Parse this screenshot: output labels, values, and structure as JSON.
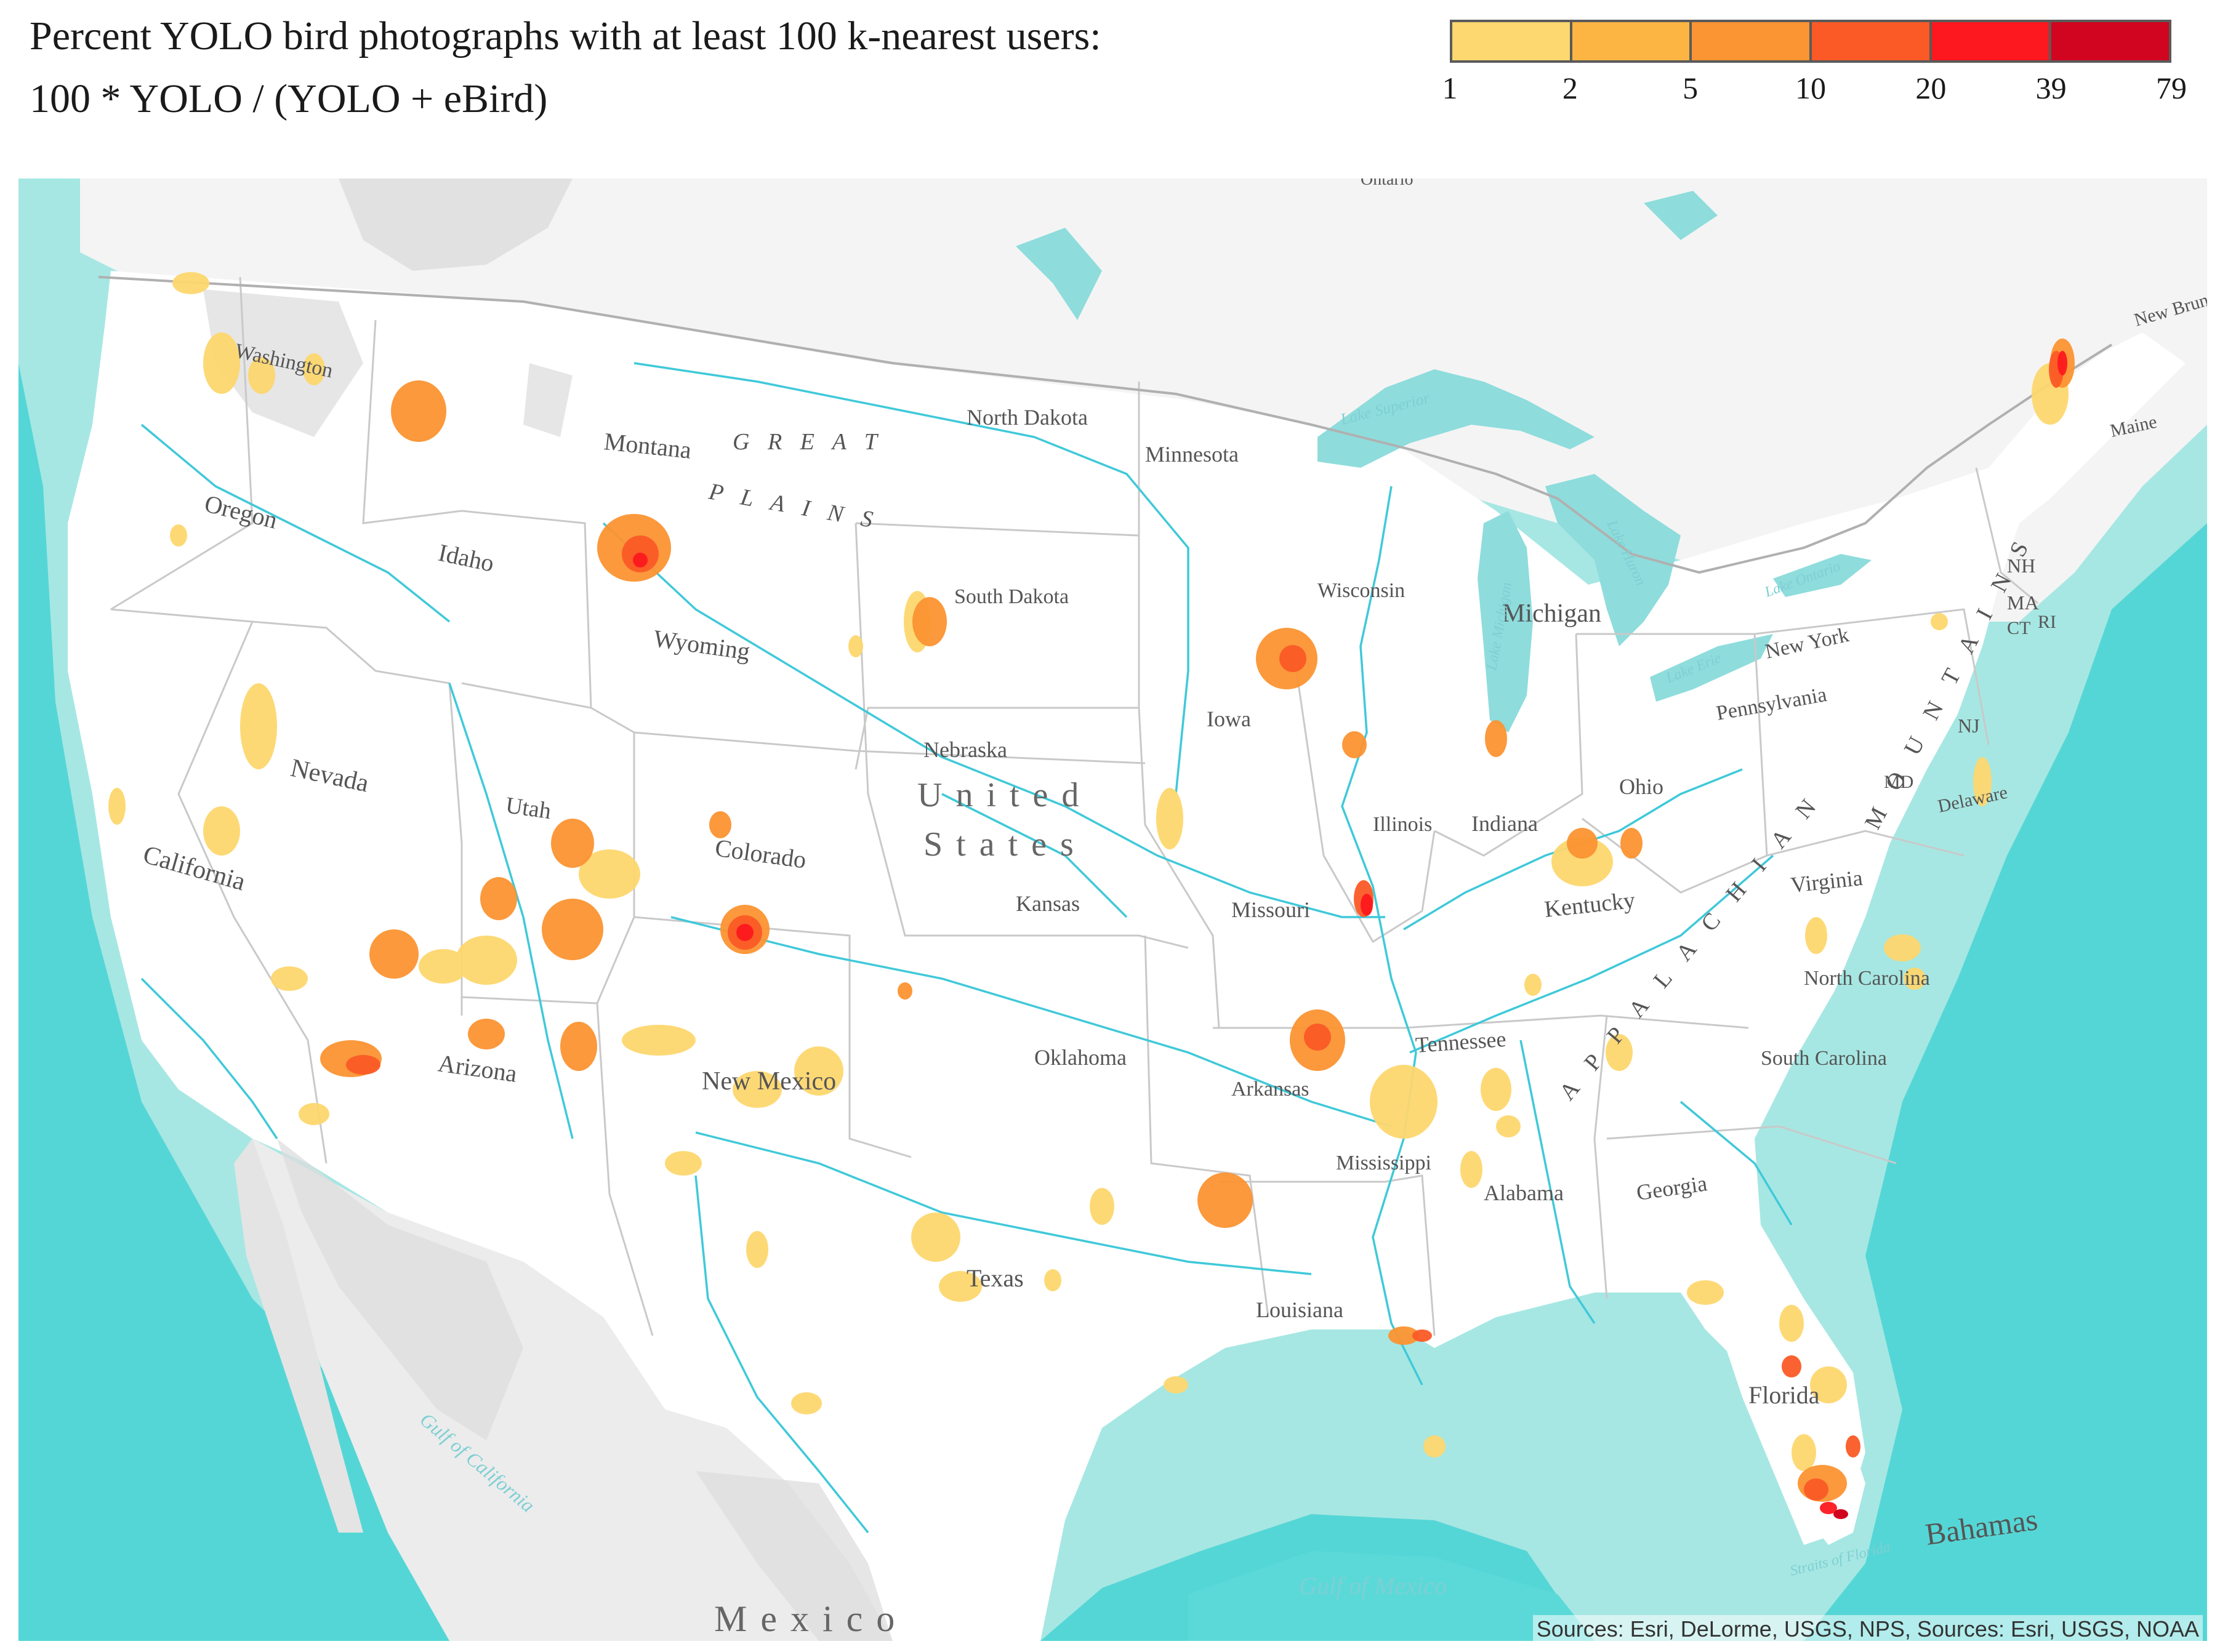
{
  "title": {
    "line1": "Percent YOLO bird photographs with at least 100 k-nearest users:",
    "line2": "100 * YOLO / (YOLO + eBird)"
  },
  "legend": {
    "colors": [
      "#fdd76f",
      "#fcb443",
      "#fb9432",
      "#fb5a26",
      "#fc181e",
      "#d1051f"
    ],
    "ticks": [
      "1",
      "2",
      "5",
      "10",
      "20",
      "39",
      "79"
    ]
  },
  "map": {
    "colors": {
      "water": "#55d6d6",
      "shelf": "#a6e7e3",
      "land": "#ffffff",
      "terrain": "#d8d8d8",
      "river": "#3fc9d9"
    },
    "state_labels": [
      "Washington",
      "Oregon",
      "Idaho",
      "Montana",
      "North Dakota",
      "South Dakota",
      "Minnesota",
      "Wisconsin",
      "Michigan",
      "Iowa",
      "Nebraska",
      "Wyoming",
      "Nevada",
      "Utah",
      "Colorado",
      "California",
      "Kansas",
      "Missouri",
      "Illinois",
      "Indiana",
      "Ohio",
      "Kentucky",
      "Pennsylvania",
      "New York",
      "Virginia",
      "North Carolina",
      "South Carolina",
      "Tennessee",
      "Arkansas",
      "Oklahoma",
      "Mississippi",
      "Alabama",
      "Georgia",
      "Florida",
      "Louisiana",
      "Texas",
      "New Mexico",
      "Arizona",
      "Maine",
      "New Brunswick",
      "Delaware",
      "NH",
      "MA",
      "CT",
      "RI",
      "NJ",
      "MD"
    ],
    "region_labels": [
      "United",
      "States",
      "Mexico",
      "Bahamas",
      "Ontario"
    ],
    "mountain_labels": [
      "G R E A T",
      "P L A I N S",
      "A P P A L A C H I A N",
      "M O U N T A I N S"
    ],
    "lake_labels": [
      "Lake Superior",
      "Lake Michigan",
      "Lake Huron",
      "Lake Erie",
      "Lake Ontario",
      "Gulf of Mexico",
      "Gulf of California",
      "Straits of Florida"
    ]
  },
  "attribution": "Sources: Esri, DeLorme, USGS, NPS, Sources: Esri, USGS, NOAA"
}
